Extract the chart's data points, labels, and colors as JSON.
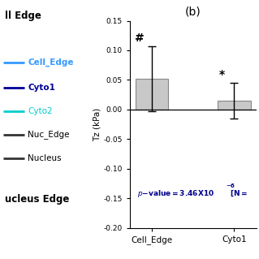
{
  "title": "(b)",
  "bars": [
    "Cell_Edge",
    "Cyto1"
  ],
  "bar_values": [
    0.052,
    0.015
  ],
  "bar_errors": [
    0.055,
    0.03
  ],
  "bar_color": "#c8c8c8",
  "bar_edge_color": "#888888",
  "ylim": [
    -0.2,
    0.15
  ],
  "yticks": [
    0.15,
    0.1,
    0.05,
    0.0,
    -0.05,
    -0.1,
    -0.15,
    -0.2
  ],
  "ylabel": "Tz (kPa)",
  "pvalue_color": "#00008B",
  "annotations": [
    "#",
    "*"
  ],
  "legend_labels": [
    "Cell_Edge",
    "Cyto1",
    "Cyto2",
    "Nuc_Edge",
    "Nucleus"
  ],
  "legend_colors": [
    "#3399FF",
    "#000099",
    "#00CCCC",
    "#333333",
    "#333333"
  ],
  "left_title": "ll Edge",
  "left_bottom": "ucleus Edge",
  "background_color": "#ffffff"
}
